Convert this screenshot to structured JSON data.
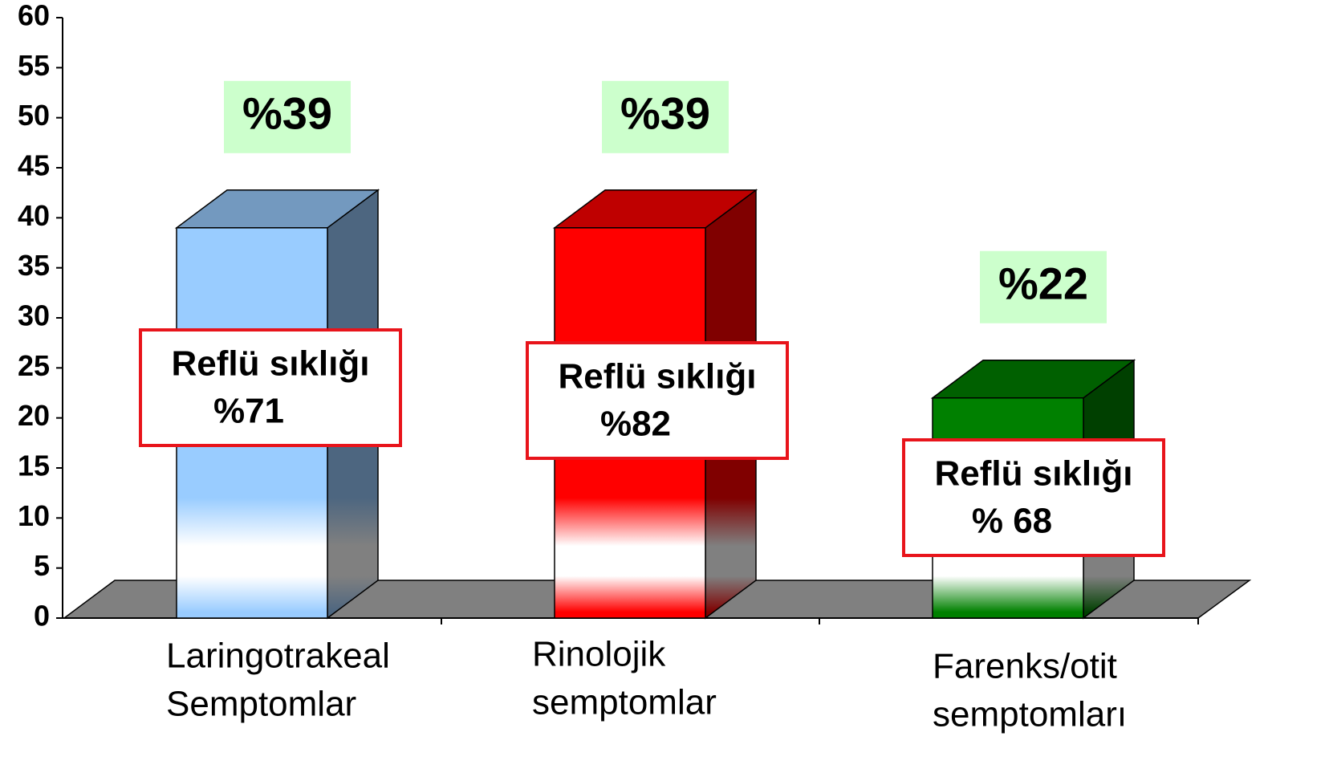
{
  "chart_data": {
    "type": "bar3d",
    "categories": [
      [
        "Laringotrakeal",
        "Semptomlar"
      ],
      [
        "Rinolojik",
        "semptomlar"
      ],
      [
        "Farenks/otit",
        "semptomları"
      ]
    ],
    "values": [
      39,
      39,
      22
    ],
    "value_labels": [
      "%39",
      "%39",
      "%22"
    ],
    "annotations": [
      [
        "Reflü sıklığı",
        "%71"
      ],
      [
        "Reflü sıklığı",
        "%82"
      ],
      [
        "Reflü sıklığı",
        "% 68"
      ]
    ],
    "colors": [
      "#99ccff",
      "#ff0000",
      "#008000"
    ],
    "ylim": [
      0,
      60
    ],
    "yticks": [
      0,
      5,
      10,
      15,
      20,
      25,
      30,
      35,
      40,
      45,
      50,
      55,
      60
    ]
  }
}
